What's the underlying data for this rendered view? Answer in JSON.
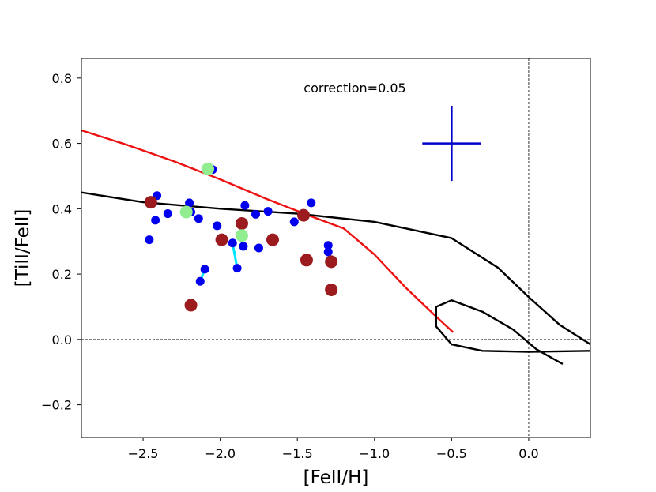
{
  "chart_data": {
    "type": "scatter",
    "title": "",
    "xlabel": "[FeII/H]",
    "ylabel": "[TiII/FeII]",
    "xlim": [
      -2.9,
      0.4
    ],
    "ylim": [
      -0.3,
      0.86
    ],
    "xticks": [
      -2.5,
      -2.0,
      -1.5,
      -1.0,
      -0.5,
      0.0
    ],
    "xtick_labels": [
      "−2.5",
      "−2.0",
      "−1.5",
      "−1.0",
      "−0.5",
      "0.0"
    ],
    "yticks": [
      -0.2,
      0.0,
      0.2,
      0.4,
      0.6,
      0.8
    ],
    "ytick_labels": [
      "−0.2",
      "0.0",
      "0.2",
      "0.4",
      "0.6",
      "0.8"
    ],
    "annotation": "correction=0.05",
    "reference_lines": {
      "y": 0.0,
      "x": 0.0,
      "style": "dashed"
    },
    "error_bar": {
      "x": -0.5,
      "y": 0.6,
      "xerr": 0.19,
      "yerr": 0.115
    },
    "series": [
      {
        "name": "blue",
        "color": "#0000ee",
        "points": [
          [
            -2.46,
            0.305
          ],
          [
            -2.42,
            0.365
          ],
          [
            -2.41,
            0.44
          ],
          [
            -2.34,
            0.385
          ],
          [
            -2.2,
            0.418
          ],
          [
            -2.19,
            0.39
          ],
          [
            -2.14,
            0.37
          ],
          [
            -2.1,
            0.215
          ],
          [
            -2.05,
            0.52
          ],
          [
            -2.02,
            0.348
          ],
          [
            -1.92,
            0.295
          ],
          [
            -1.89,
            0.218
          ],
          [
            -1.85,
            0.285
          ],
          [
            -1.84,
            0.41
          ],
          [
            -1.77,
            0.383
          ],
          [
            -1.75,
            0.28
          ],
          [
            -1.69,
            0.392
          ],
          [
            -1.52,
            0.36
          ],
          [
            -1.41,
            0.418
          ],
          [
            -1.3,
            0.288
          ],
          [
            -1.3,
            0.268
          ],
          [
            -2.13,
            0.178
          ]
        ]
      },
      {
        "name": "dark red",
        "color": "#9b1b1f",
        "points": [
          [
            -2.45,
            0.42
          ],
          [
            -2.19,
            0.105
          ],
          [
            -1.99,
            0.305
          ],
          [
            -1.86,
            0.355
          ],
          [
            -1.66,
            0.305
          ],
          [
            -1.46,
            0.38
          ],
          [
            -1.44,
            0.243
          ],
          [
            -1.28,
            0.238
          ],
          [
            -1.28,
            0.152
          ]
        ]
      },
      {
        "name": "light green",
        "color": "#90ee90",
        "points": [
          [
            -2.08,
            0.522
          ],
          [
            -2.22,
            0.39
          ],
          [
            -1.86,
            0.318
          ]
        ]
      }
    ],
    "connectors": [
      {
        "color": "#00e5ff",
        "points": [
          [
            -2.13,
            0.178
          ],
          [
            -2.1,
            0.215
          ]
        ]
      },
      {
        "color": "#00e5ff",
        "points": [
          [
            -1.92,
            0.295
          ],
          [
            -1.89,
            0.218
          ]
        ]
      }
    ],
    "curves": [
      {
        "name": "red model",
        "color": "#ee1111",
        "points": [
          [
            -2.9,
            0.64
          ],
          [
            -2.6,
            0.595
          ],
          [
            -2.3,
            0.545
          ],
          [
            -2.0,
            0.49
          ],
          [
            -1.7,
            0.43
          ],
          [
            -1.4,
            0.375
          ],
          [
            -1.2,
            0.34
          ],
          [
            -1.0,
            0.26
          ],
          [
            -0.8,
            0.16
          ],
          [
            -0.6,
            0.07
          ],
          [
            -0.49,
            0.022
          ]
        ]
      },
      {
        "name": "black model 1",
        "color": "#000000",
        "points": [
          [
            -2.9,
            0.45
          ],
          [
            -2.5,
            0.42
          ],
          [
            -2.0,
            0.4
          ],
          [
            -1.5,
            0.385
          ],
          [
            -1.0,
            0.36
          ],
          [
            -0.5,
            0.31
          ],
          [
            -0.2,
            0.22
          ],
          [
            0.0,
            0.13
          ],
          [
            0.2,
            0.045
          ],
          [
            0.4,
            -0.015
          ]
        ]
      },
      {
        "name": "black model 2",
        "color": "#000000",
        "points": [
          [
            0.22,
            -0.075
          ],
          [
            0.05,
            -0.03
          ],
          [
            -0.1,
            0.03
          ],
          [
            -0.3,
            0.085
          ],
          [
            -0.5,
            0.12
          ],
          [
            -0.6,
            0.1
          ],
          [
            -0.6,
            0.04
          ],
          [
            -0.5,
            -0.015
          ],
          [
            -0.3,
            -0.035
          ],
          [
            0.0,
            -0.038
          ],
          [
            0.4,
            -0.035
          ]
        ]
      }
    ]
  }
}
